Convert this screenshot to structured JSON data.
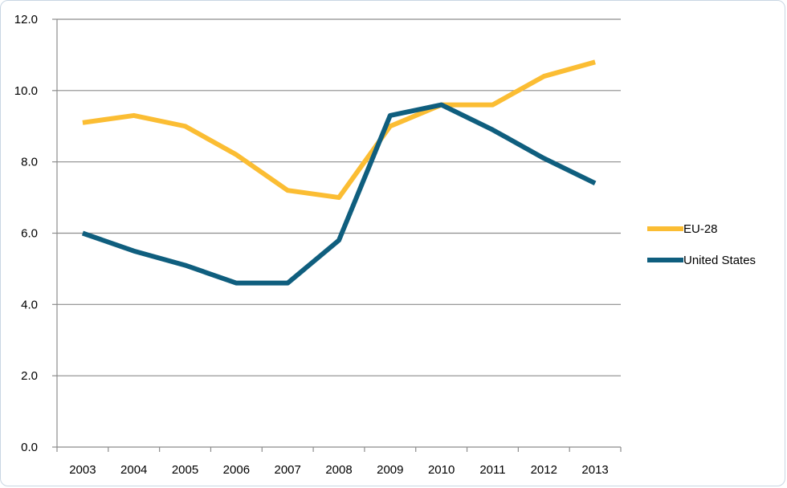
{
  "chart_data": {
    "type": "line",
    "title": "",
    "xlabel": "",
    "ylabel": "",
    "categories": [
      "2003",
      "2004",
      "2005",
      "2006",
      "2007",
      "2008",
      "2009",
      "2010",
      "2011",
      "2012",
      "2013"
    ],
    "ylim": [
      0,
      12
    ],
    "yticks": [
      "0.0",
      "2.0",
      "4.0",
      "6.0",
      "8.0",
      "10.0",
      "12.0"
    ],
    "grid": true,
    "legend_position": "right",
    "series": [
      {
        "name": "EU-28",
        "color": "#fbbd33",
        "values": [
          9.1,
          9.3,
          9.0,
          8.2,
          7.2,
          7.0,
          9.0,
          9.6,
          9.6,
          10.4,
          10.8
        ]
      },
      {
        "name": "United States",
        "color": "#0f5e7e",
        "values": [
          6.0,
          5.5,
          5.1,
          4.6,
          4.6,
          5.8,
          9.3,
          9.6,
          8.9,
          8.1,
          7.4
        ]
      }
    ]
  }
}
